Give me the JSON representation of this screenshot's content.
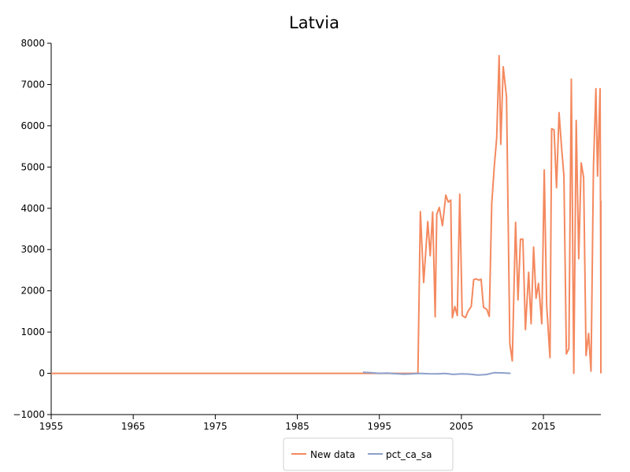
{
  "chart_data": {
    "type": "line",
    "title": "Latvia",
    "xlabel": "",
    "ylabel": "",
    "xlim": [
      1955,
      2022
    ],
    "ylim": [
      -1000,
      8000
    ],
    "x_ticks": [
      "1955",
      "1965",
      "1975",
      "1985",
      "1995",
      "2005",
      "2015"
    ],
    "y_ticks": [
      "−1000",
      "0",
      "1000",
      "2000",
      "3000",
      "4000",
      "5000",
      "6000",
      "7000",
      "8000"
    ],
    "legend_position": "bottom-center",
    "grid": false,
    "series": [
      {
        "name": "New data",
        "color": "#f4895f",
        "points": [
          [
            1955,
            0
          ],
          [
            1975,
            0
          ],
          [
            1999.7,
            0
          ],
          [
            2000.0,
            3920
          ],
          [
            2000.4,
            2200
          ],
          [
            2000.9,
            3680
          ],
          [
            2001.2,
            2850
          ],
          [
            2001.5,
            3910
          ],
          [
            2001.8,
            1370
          ],
          [
            2002.0,
            3850
          ],
          [
            2002.3,
            4020
          ],
          [
            2002.7,
            3580
          ],
          [
            2003.1,
            4320
          ],
          [
            2003.4,
            4150
          ],
          [
            2003.7,
            4200
          ],
          [
            2003.9,
            1350
          ],
          [
            2004.2,
            1620
          ],
          [
            2004.5,
            1400
          ],
          [
            2004.8,
            4340
          ],
          [
            2005.1,
            1400
          ],
          [
            2005.5,
            1350
          ],
          [
            2005.8,
            1500
          ],
          [
            2006.2,
            1620
          ],
          [
            2006.5,
            2270
          ],
          [
            2006.8,
            2290
          ],
          [
            2007.1,
            2260
          ],
          [
            2007.4,
            2280
          ],
          [
            2007.7,
            1600
          ],
          [
            2008.1,
            1550
          ],
          [
            2008.4,
            1380
          ],
          [
            2008.7,
            4100
          ],
          [
            2009.0,
            5000
          ],
          [
            2009.3,
            5700
          ],
          [
            2009.6,
            7700
          ],
          [
            2009.8,
            5550
          ],
          [
            2010.1,
            7430
          ],
          [
            2010.5,
            6700
          ],
          [
            2010.9,
            720
          ],
          [
            2011.2,
            300
          ],
          [
            2011.6,
            3660
          ],
          [
            2011.9,
            1780
          ],
          [
            2012.2,
            3250
          ],
          [
            2012.5,
            3250
          ],
          [
            2012.8,
            1060
          ],
          [
            2013.2,
            2450
          ],
          [
            2013.5,
            1200
          ],
          [
            2013.8,
            3060
          ],
          [
            2014.1,
            1820
          ],
          [
            2014.4,
            2180
          ],
          [
            2014.8,
            1200
          ],
          [
            2015.1,
            4930
          ],
          [
            2015.4,
            1640
          ],
          [
            2015.8,
            380
          ],
          [
            2016.0,
            5930
          ],
          [
            2016.3,
            5900
          ],
          [
            2016.6,
            4500
          ],
          [
            2016.9,
            6320
          ],
          [
            2017.2,
            5500
          ],
          [
            2017.5,
            4780
          ],
          [
            2017.8,
            470
          ],
          [
            2018.1,
            600
          ],
          [
            2018.4,
            7130
          ],
          [
            2018.7,
            0
          ],
          [
            2019.0,
            6130
          ],
          [
            2019.3,
            2780
          ],
          [
            2019.6,
            5100
          ],
          [
            2019.9,
            4750
          ],
          [
            2020.2,
            430
          ],
          [
            2020.5,
            970
          ],
          [
            2020.8,
            50
          ],
          [
            2021.1,
            5000
          ],
          [
            2021.4,
            6900
          ],
          [
            2021.6,
            4780
          ],
          [
            2021.9,
            6900
          ],
          [
            2022.2,
            1940
          ],
          [
            2022.5,
            4150
          ],
          [
            2022.9,
            3600
          ],
          [
            2023.2,
            650
          ],
          [
            2023.5,
            4000
          ],
          [
            2023.8,
            4170
          ],
          [
            2024.2,
            0
          ]
        ]
      },
      {
        "name": "pct_ca_sa",
        "color": "#8da0cb",
        "points": [
          [
            1993.0,
            25
          ],
          [
            1994.0,
            15
          ],
          [
            1995.0,
            0
          ],
          [
            1996.0,
            5
          ],
          [
            1997.0,
            -10
          ],
          [
            1998.0,
            -20
          ],
          [
            1999.0,
            -15
          ],
          [
            2000.0,
            0
          ],
          [
            2001.0,
            -10
          ],
          [
            2002.0,
            -15
          ],
          [
            2003.0,
            -5
          ],
          [
            2004.0,
            -25
          ],
          [
            2005.0,
            -15
          ],
          [
            2006.0,
            -20
          ],
          [
            2007.0,
            -40
          ],
          [
            2008.0,
            -30
          ],
          [
            2009.0,
            15
          ],
          [
            2010.0,
            10
          ],
          [
            2011.0,
            0
          ]
        ]
      }
    ]
  }
}
